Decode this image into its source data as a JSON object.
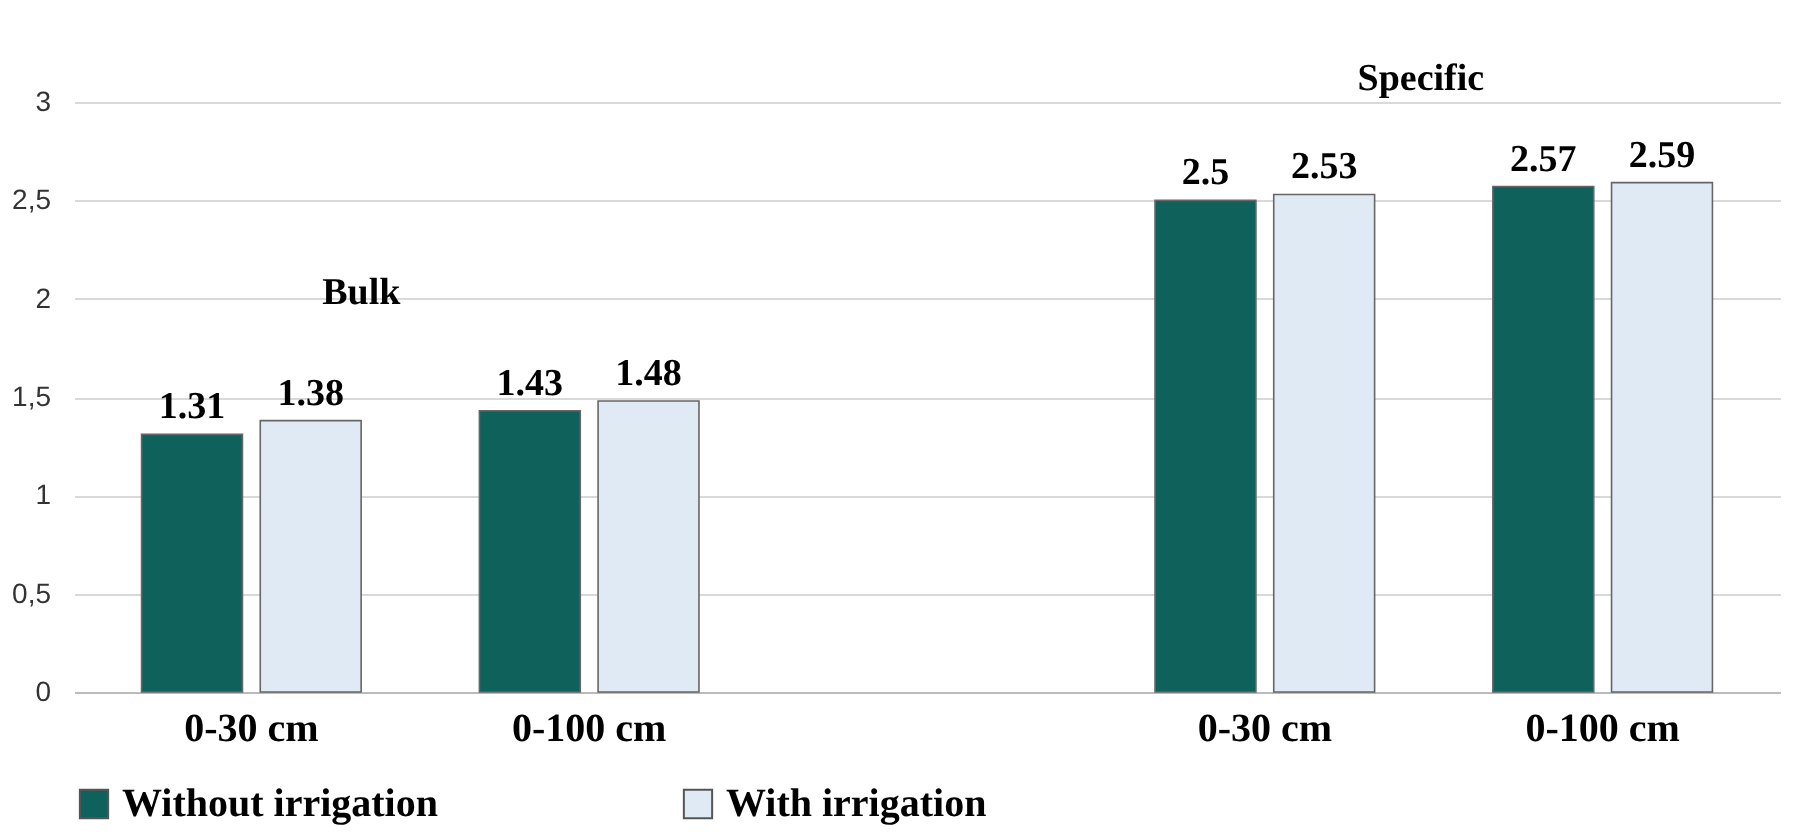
{
  "chart_data": {
    "type": "bar",
    "categories": [
      "0-30 cm",
      "0-100 cm",
      null,
      "0-30 cm",
      "0-100 cm"
    ],
    "series": [
      {
        "name": "Without irrigation",
        "color": "#0f615c",
        "values": [
          1.31,
          1.43,
          null,
          2.5,
          2.57
        ]
      },
      {
        "name": "With irrigation",
        "color": "#dfeaf5",
        "values": [
          1.38,
          1.48,
          null,
          2.53,
          2.59
        ]
      }
    ],
    "ylim": [
      0,
      3
    ],
    "yticks": [
      0,
      {
        "value": 0.5,
        "label": "0,5"
      },
      1,
      {
        "value": 1.5,
        "label": "1,5"
      },
      2,
      {
        "value": 2.5,
        "label": "2,5"
      },
      3
    ],
    "grid": "y",
    "legend": "bottom",
    "data_labels": true,
    "annotations": [
      "Bulk",
      "Specific"
    ]
  }
}
